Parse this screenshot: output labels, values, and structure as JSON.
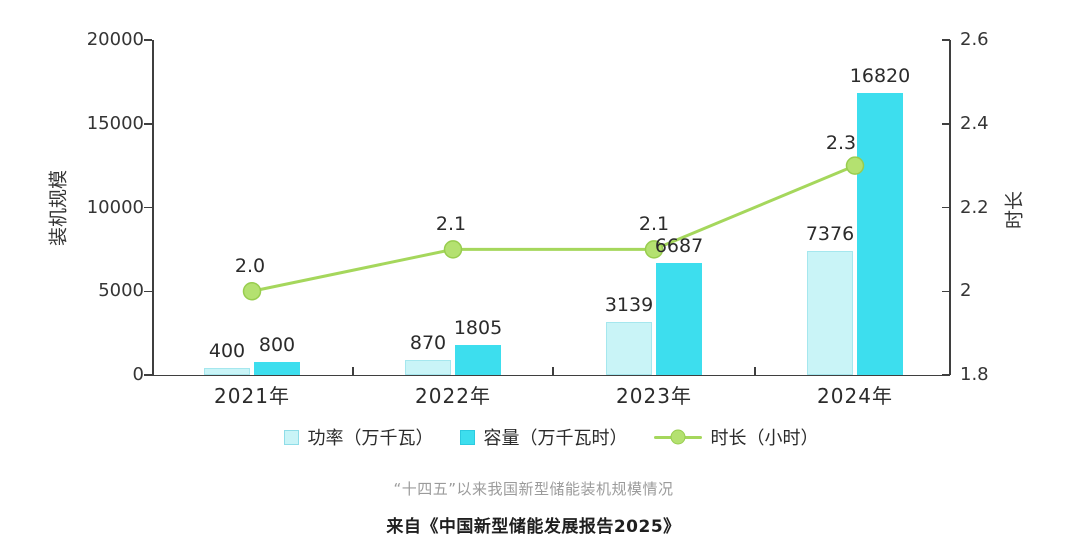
{
  "captions": {
    "title": "“十四五”以来我国新型储能装机规模情况",
    "source": "来自《中国新型储能发展报告2025》"
  },
  "chart_data": {
    "type": "bar",
    "categories": [
      "2021年",
      "2022年",
      "2023年",
      "2024年"
    ],
    "series": [
      {
        "name": "功率（万千瓦）",
        "type": "bar",
        "axis": "left",
        "values": [
          400,
          870,
          3139,
          7376
        ],
        "color": "#c9f4f7"
      },
      {
        "name": "容量（万千瓦时）",
        "type": "bar",
        "axis": "left",
        "values": [
          800,
          1805,
          6687,
          16820
        ],
        "color": "#3ddeee"
      },
      {
        "name": "时长（小时）",
        "type": "line",
        "axis": "right",
        "values": [
          2.0,
          2.1,
          2.1,
          2.3
        ],
        "color": "#a5d75c"
      }
    ],
    "ylabel_left": "装机规模",
    "ylabel_right": "时长",
    "ylim_left": [
      0,
      20000
    ],
    "ylim_right": [
      1.8,
      2.6
    ],
    "yticks_left": [
      "20000",
      "15000",
      "10000",
      "5000",
      "0"
    ],
    "yticks_right": [
      "2.6",
      "2.4",
      "2.2",
      "2",
      "1.8"
    ],
    "grid": false,
    "legend_position": "bottom",
    "data_labels_shown": true
  },
  "colors": {
    "power_bar": "#c9f4f7",
    "capacity_bar": "#3ddeee",
    "line": "#a5d75c",
    "marker_fill": "#b4e170",
    "marker_stroke": "#98cd4e",
    "axis": "#3f3f3f"
  }
}
